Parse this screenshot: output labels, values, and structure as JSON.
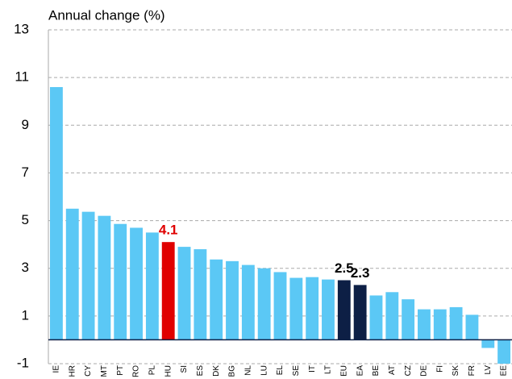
{
  "chart_data": {
    "type": "bar",
    "y_axis_label": "Annual change (%)",
    "categories": [
      "IE",
      "HR",
      "CY",
      "MT",
      "PT",
      "RO",
      "PL",
      "HU",
      "SI",
      "ES",
      "DK",
      "BG",
      "NL",
      "LU",
      "EL",
      "SE",
      "IT",
      "LT",
      "EU",
      "EA",
      "BE",
      "AT",
      "CZ",
      "DE",
      "FI",
      "SK",
      "FR",
      "LV",
      "EE"
    ],
    "values": [
      10.6,
      5.5,
      5.37,
      5.2,
      4.86,
      4.7,
      4.5,
      4.1,
      3.9,
      3.8,
      3.37,
      3.3,
      3.14,
      3.0,
      2.84,
      2.6,
      2.63,
      2.53,
      2.5,
      2.3,
      1.86,
      2.0,
      1.7,
      1.28,
      1.28,
      1.37,
      1.05,
      -0.34,
      -1.0
    ],
    "value_labels": [
      null,
      null,
      null,
      null,
      null,
      null,
      null,
      "4.1",
      null,
      null,
      null,
      null,
      null,
      null,
      null,
      null,
      null,
      null,
      "2.5",
      "2.3",
      null,
      null,
      null,
      null,
      null,
      null,
      null,
      null,
      null
    ],
    "colors": [
      "#5bc8f5",
      "#5bc8f5",
      "#5bc8f5",
      "#5bc8f5",
      "#5bc8f5",
      "#5bc8f5",
      "#5bc8f5",
      "#e00000",
      "#5bc8f5",
      "#5bc8f5",
      "#5bc8f5",
      "#5bc8f5",
      "#5bc8f5",
      "#5bc8f5",
      "#5bc8f5",
      "#5bc8f5",
      "#5bc8f5",
      "#5bc8f5",
      "#0d1f45",
      "#0d1f45",
      "#5bc8f5",
      "#5bc8f5",
      "#5bc8f5",
      "#5bc8f5",
      "#5bc8f5",
      "#5bc8f5",
      "#5bc8f5",
      "#5bc8f5",
      "#5bc8f5"
    ],
    "value_label_colors": [
      null,
      null,
      null,
      null,
      null,
      null,
      null,
      "#e00000",
      null,
      null,
      null,
      null,
      null,
      null,
      null,
      null,
      null,
      null,
      "#000000",
      "#000000",
      null,
      null,
      null,
      null,
      null,
      null,
      null,
      null,
      null
    ],
    "ylim": [
      -1,
      13
    ],
    "yticks": [
      -1,
      1,
      3,
      5,
      7,
      9,
      11,
      13
    ],
    "grid": true
  }
}
